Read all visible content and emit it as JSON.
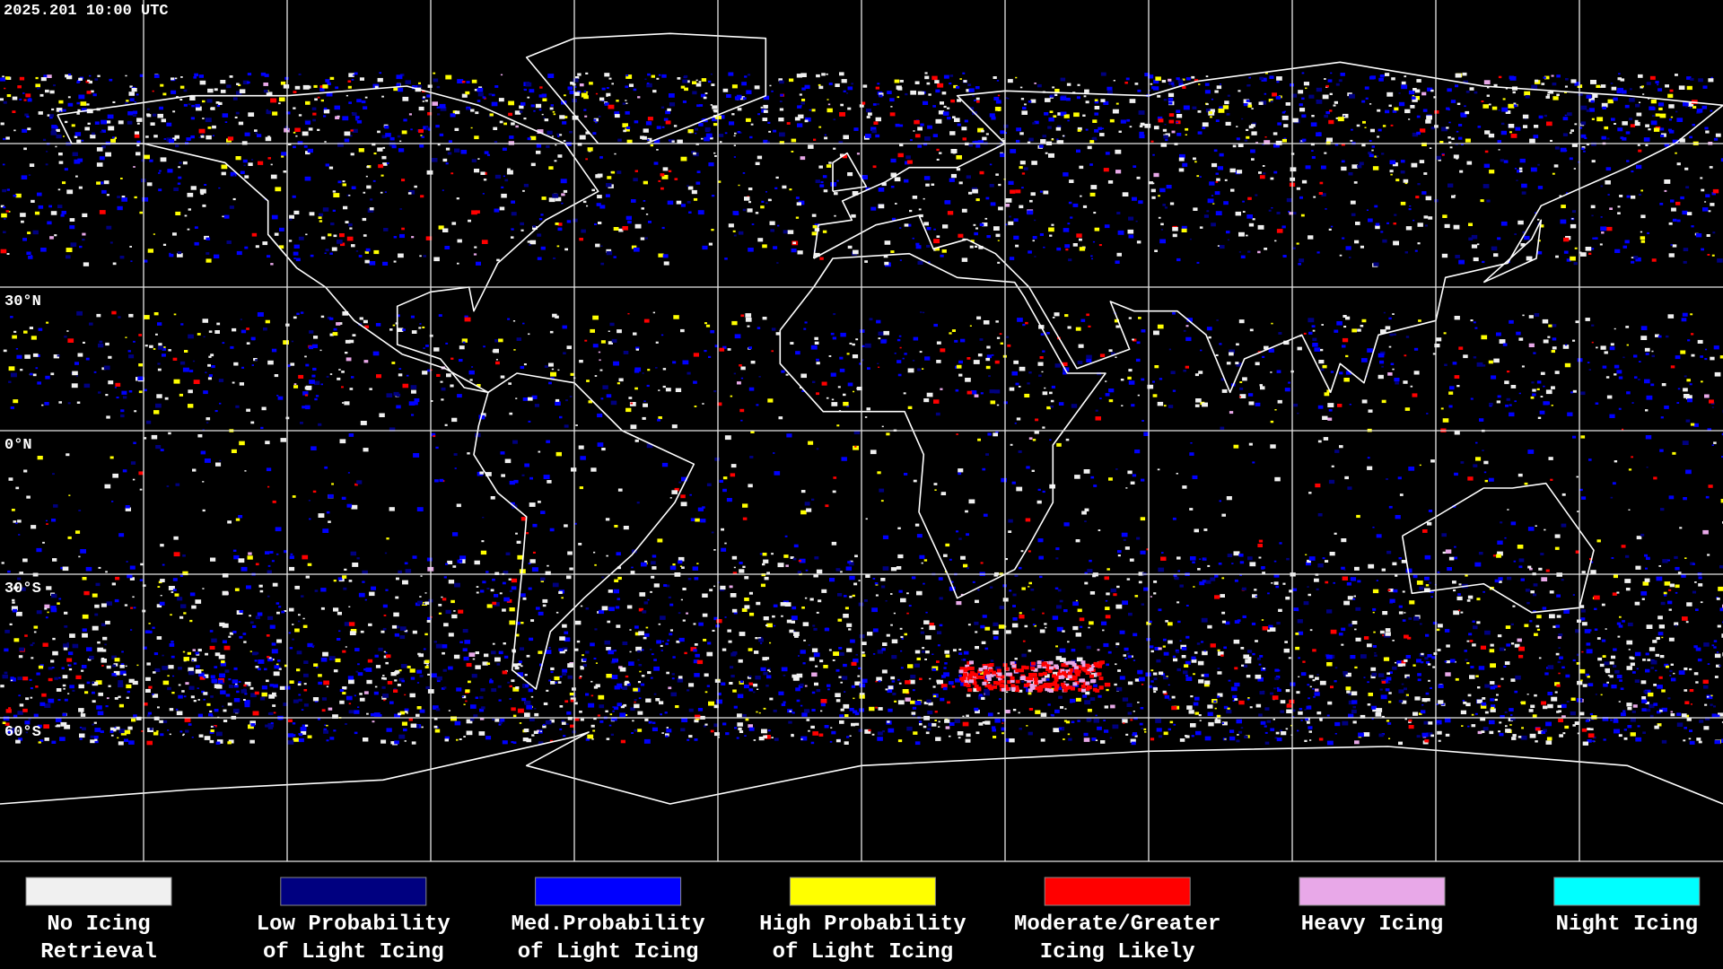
{
  "header": {
    "timestamp": "2025.201 10:00 UTC"
  },
  "latitude_labels": [
    "30°N",
    "0°N",
    "30°S",
    "60°S"
  ],
  "legend": [
    {
      "color": "#f0f0f0",
      "label_lines": [
        "No Icing",
        "Retrieval"
      ]
    },
    {
      "color": "#000080",
      "label_lines": [
        "Low Probability",
        "of Light Icing"
      ]
    },
    {
      "color": "#0000ff",
      "label_lines": [
        "Med.Probability",
        "of Light Icing"
      ]
    },
    {
      "color": "#ffff00",
      "label_lines": [
        "High Probability",
        "of Light Icing"
      ]
    },
    {
      "color": "#ff0000",
      "label_lines": [
        "Moderate/Greater",
        "Icing Likely"
      ]
    },
    {
      "color": "#e8a8e8",
      "label_lines": [
        "Heavy Icing"
      ]
    },
    {
      "color": "#00ffff",
      "label_lines": [
        "Night Icing"
      ]
    }
  ]
}
